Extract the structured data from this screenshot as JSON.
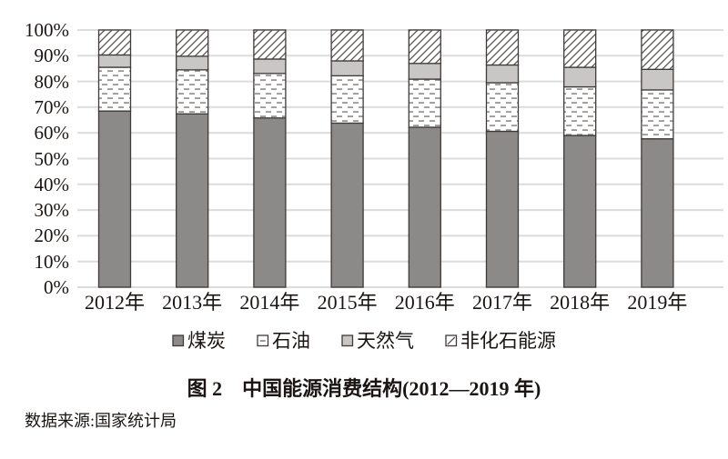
{
  "figure": {
    "title": "图 2　中国能源消费结构(2012—2019 年)",
    "source": "数据来源:国家统计局"
  },
  "chart_data": {
    "type": "bar",
    "stacked": true,
    "orientation": "vertical",
    "unit": "%",
    "categories": [
      "2012年",
      "2013年",
      "2014年",
      "2015年",
      "2016年",
      "2017年",
      "2018年",
      "2019年"
    ],
    "series": [
      {
        "name": "煤炭",
        "style": "solid-dark",
        "values": [
          68.5,
          67.4,
          65.8,
          63.8,
          62.2,
          60.6,
          59.0,
          57.7
        ]
      },
      {
        "name": "石油",
        "style": "dash-pattern",
        "values": [
          17.0,
          17.1,
          17.3,
          18.4,
          18.7,
          18.9,
          18.9,
          19.0
        ]
      },
      {
        "name": "天然气",
        "style": "solid-light",
        "values": [
          4.8,
          5.3,
          5.6,
          5.8,
          6.1,
          6.9,
          7.6,
          8.0
        ]
      },
      {
        "name": "非化石能源",
        "style": "diagonal-hatch",
        "values": [
          9.7,
          10.2,
          11.3,
          12.0,
          13.0,
          13.6,
          14.5,
          15.3
        ]
      }
    ],
    "ylim": [
      0,
      100
    ],
    "ytick_step": 10,
    "ytick_suffix": "%",
    "grid": true,
    "legend_position": "bottom",
    "colors": {
      "coal_fill": "#8b8a88",
      "gas_fill": "#c8c7c5",
      "segment_border": "#3e3a39",
      "gridline": "#dcdcdc",
      "oil_dash": "#9a9896",
      "hatch_stroke": "#57514e",
      "background": "#ffffff",
      "text": "#1a1512"
    }
  }
}
